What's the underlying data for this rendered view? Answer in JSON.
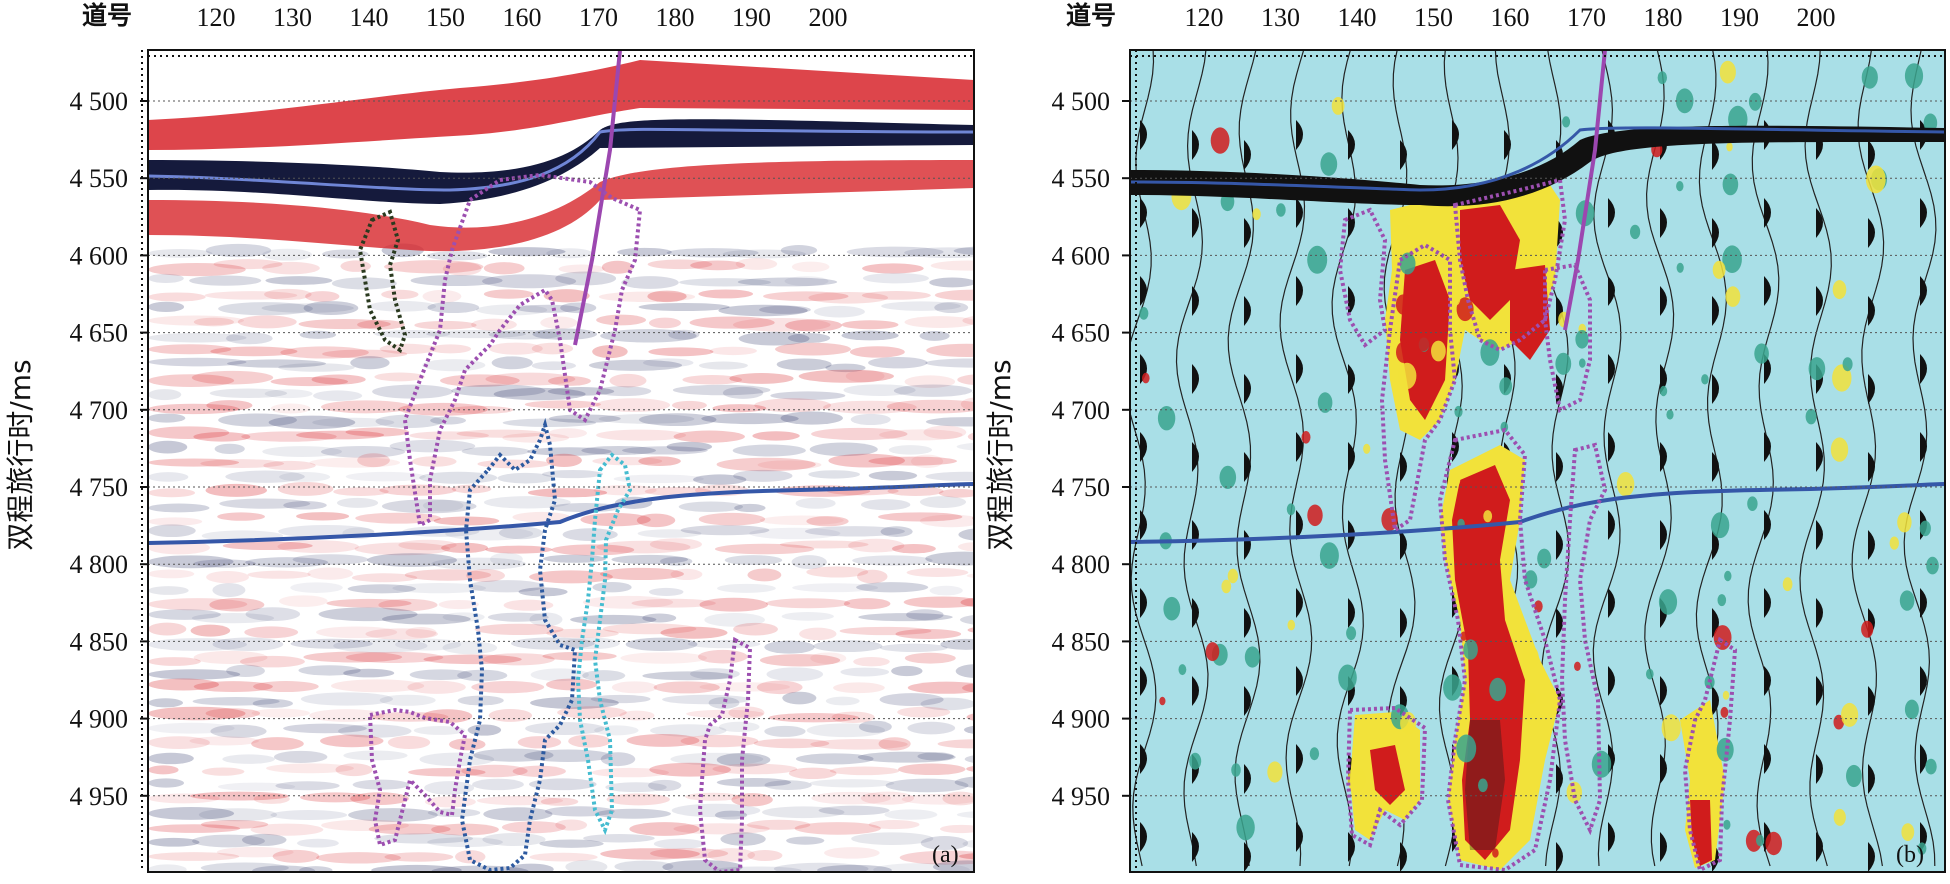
{
  "panels": [
    {
      "id": "a",
      "label": "(a)",
      "trace_axis_label": "道号",
      "traces": [
        "120",
        "130",
        "140",
        "150",
        "160",
        "170",
        "180",
        "190",
        "200"
      ],
      "times": [
        "4 500",
        "4 550",
        "4 600",
        "4 650",
        "4 700",
        "4 750",
        "4 800",
        "4 850",
        "4 900",
        "4 950"
      ],
      "style": "variable-density red/white/black seismic section",
      "colors": {
        "positive": "#d7252b",
        "negative": "#1a2350",
        "background": "#ffffff"
      }
    },
    {
      "id": "b",
      "label": "(b)",
      "trace_axis_label": "道号",
      "traces": [
        "120",
        "130",
        "140",
        "150",
        "160",
        "170",
        "180",
        "190",
        "200"
      ],
      "times": [
        "4 500",
        "4 550",
        "4 600",
        "4 650",
        "4 700",
        "4 750",
        "4 800",
        "4 850",
        "4 900",
        "4 950"
      ],
      "style": "wiggle traces over attribute map",
      "colors": {
        "background": "#a9dfe7",
        "high": "#d01c1c",
        "mid": "#f2e23a",
        "low": "#2ba08c"
      }
    }
  ],
  "y_axis_label": "双程旅行时/ms",
  "interpretation": {
    "horizon_color": "#3557a8",
    "fault_color": "#9c47b0",
    "outline_colors": [
      "#9c4fb0",
      "#2a3a1f",
      "#2d5aa0",
      "#45bcd0"
    ]
  }
}
